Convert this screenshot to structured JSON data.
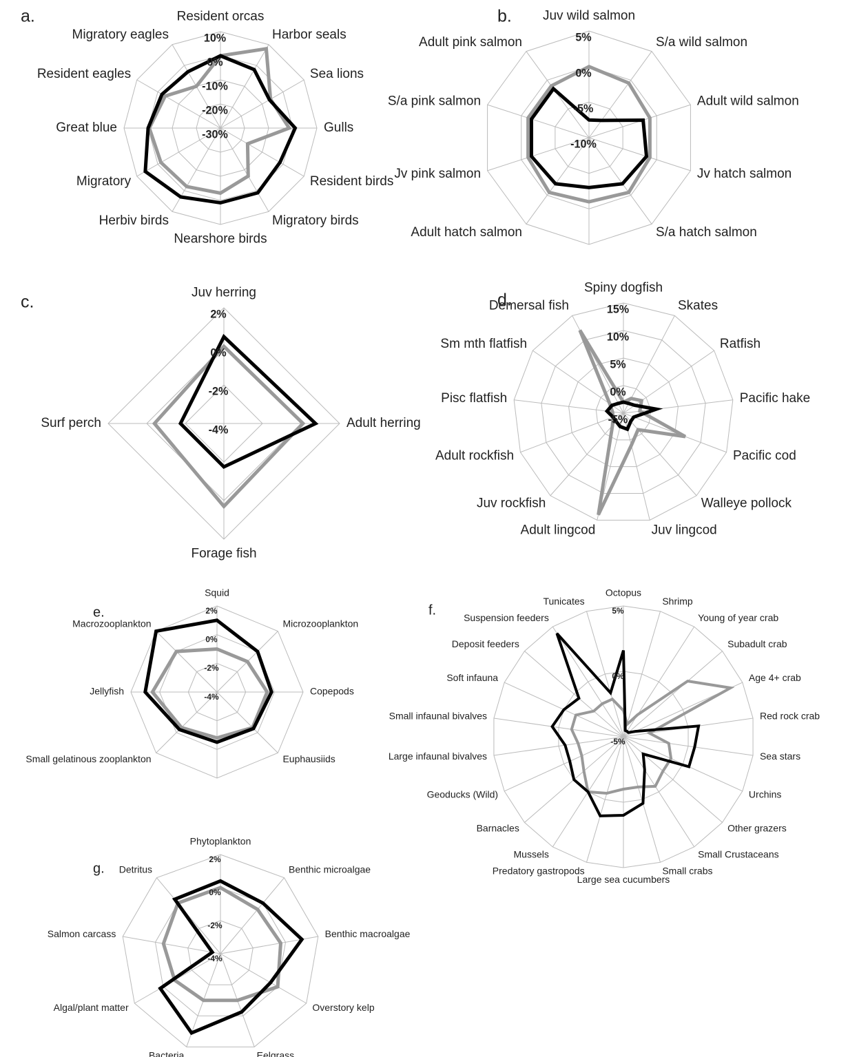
{
  "chart_data": [
    {
      "type": "radar",
      "label": "a.",
      "categories": [
        "Resident orcas",
        "Harbor seals",
        "Sea lions",
        "Gulls",
        "Resident birds",
        "Migratory birds",
        "Nearshore birds",
        "Herbiv birds",
        "Migratory",
        "Great blue",
        "Resident eagles",
        "Migratory eagles"
      ],
      "series": [
        {
          "color": "#999999",
          "values": [
            0,
            8,
            -6,
            -1.5,
            -17,
            -7,
            -3,
            -2,
            -1.5,
            -0.5,
            -3.5,
            -10
          ]
        },
        {
          "color": "#000000",
          "values": [
            0,
            -2,
            -6.5,
            1,
            -1.5,
            1,
            1,
            3,
            6,
            0,
            -2,
            -3
          ]
        }
      ],
      "rlim": [
        -30,
        10
      ],
      "rticks": [
        {
          "value": -30,
          "label": "-30%"
        },
        {
          "value": -20,
          "label": "-20%"
        },
        {
          "value": -10,
          "label": "-10%"
        },
        {
          "value": 0,
          "label": "0%"
        },
        {
          "value": 10,
          "label": "10%"
        }
      ]
    },
    {
      "type": "radar",
      "label": "b.",
      "categories": [
        "Juv wild salmon",
        "S/a wild salmon",
        "Adult wild salmon",
        "Jv hatch salmon",
        "S/a hatch salmon",
        null,
        "Adult hatch salmon",
        "Jv pink salmon",
        "S/a pink salmon",
        "Adult pink salmon"
      ],
      "series": [
        {
          "color": "#999999",
          "values": [
            0,
            -0.5,
            -1,
            -1,
            -0.5,
            -1,
            -0.5,
            -1,
            -1,
            -1
          ]
        },
        {
          "color": "#000000",
          "values": [
            -7.5,
            -7,
            -2,
            -1.5,
            -2,
            -3,
            -2,
            -1.5,
            -1.5,
            -1.5
          ]
        }
      ],
      "rlim": [
        -10,
        5
      ],
      "rticks": [
        {
          "value": -10,
          "label": "-10%"
        },
        {
          "value": -5,
          "label": "-5%"
        },
        {
          "value": 0,
          "label": "0%"
        },
        {
          "value": 5,
          "label": "5%"
        }
      ]
    },
    {
      "type": "radar",
      "label": "c.",
      "categories": [
        "Juv herring",
        "Adult herring",
        "Forage fish",
        "Surf perch"
      ],
      "series": [
        {
          "color": "#999999",
          "values": [
            0,
            0.1,
            0.3,
            -0.4
          ]
        },
        {
          "color": "#000000",
          "values": [
            0.5,
            0.75,
            -1.75,
            -1.75
          ]
        }
      ],
      "rlim": [
        -4,
        2
      ],
      "rticks": [
        {
          "value": -4,
          "label": "-4%"
        },
        {
          "value": -2,
          "label": "-2%"
        },
        {
          "value": 0,
          "label": "0%"
        },
        {
          "value": 2,
          "label": "2%"
        }
      ]
    },
    {
      "type": "radar",
      "label": "d.",
      "categories": [
        "Spiny dogfish",
        "Skates",
        "Ratfish",
        "Pacific hake",
        "Pacific cod",
        "Walleye pollock",
        "Juv lingcod",
        "Adult lingcod",
        "Juv rockfish",
        "Adult rockfish",
        "Pisc flatfish",
        "Sm mth flatfish",
        "Demersal fish"
      ],
      "series": [
        {
          "color": "#999999",
          "values": [
            -3,
            -2,
            -1,
            -2,
            7,
            -1,
            1,
            14,
            -2,
            -3,
            -3,
            -2,
            12
          ]
        },
        {
          "color": "#000000",
          "values": [
            -3,
            -3,
            -2.5,
            1,
            -3,
            -3,
            -2,
            -2.5,
            -3,
            -3,
            -2,
            -2.5,
            -3
          ]
        }
      ],
      "rlim": [
        -5,
        15
      ],
      "rticks": [
        {
          "value": -5,
          "label": "-5%"
        },
        {
          "value": 0,
          "label": "0%"
        },
        {
          "value": 5,
          "label": "5%"
        },
        {
          "value": 10,
          "label": "10%"
        },
        {
          "value": 15,
          "label": "15%"
        }
      ]
    },
    {
      "type": "radar",
      "label": "e.",
      "categories": [
        "Squid",
        "Microzooplankton",
        "Copepods",
        "Euphausiids",
        null,
        "Small gelatinous zooplankton",
        "Jellyfish",
        "Macrozooplankton"
      ],
      "series": [
        {
          "color": "#999999",
          "values": [
            -1,
            -1,
            -0.5,
            -0.5,
            -0.8,
            -0.5,
            0.5,
            0
          ]
        },
        {
          "color": "#000000",
          "values": [
            1,
            0,
            -0.2,
            -0.4,
            -0.5,
            -0.3,
            1,
            2
          ]
        }
      ],
      "rlim": [
        -4,
        2
      ],
      "rticks": [
        {
          "value": -4,
          "label": "-4%"
        },
        {
          "value": -2,
          "label": "-2%"
        },
        {
          "value": 0,
          "label": "0%"
        },
        {
          "value": 2,
          "label": "2%"
        }
      ]
    },
    {
      "type": "radar",
      "label": "f.",
      "categories": [
        "Octopus",
        "Shrimp",
        "Young of year crab",
        "Subadult crab",
        "Age 4+ crab",
        "Red rock crab",
        "Sea stars",
        "Urchins",
        "Other grazers",
        "Small Crustaceans",
        "Small crabs",
        "Large sea cucumbers",
        "Predatory gastropods",
        "Mussels",
        "Barnacles",
        "Geoducks (Wild)",
        "Large infaunal bivalves",
        "Small infaunal bivalves",
        "Soft infauna",
        "Deposit feeders",
        "Suspension feeders",
        "Tunicates"
      ],
      "series": [
        {
          "color": "#999999",
          "values": [
            -3,
            -4,
            -3,
            1.5,
            4,
            -3,
            -1.5,
            -1,
            -1,
            -0.5,
            -1,
            -1,
            -0.5,
            0,
            -1,
            -1.5,
            -1.5,
            -1,
            -1,
            -2,
            -2,
            -2
          ]
        },
        {
          "color": "#000000",
          "values": [
            1.6,
            -4.5,
            -4.5,
            -4.5,
            -4,
            0.8,
            0.5,
            0.5,
            -3,
            -2,
            0.3,
            1,
            1.3,
            0,
            0,
            -0.5,
            -0.5,
            0.5,
            0,
            -0.5,
            4.4,
            -1.5
          ]
        }
      ],
      "rlim": [
        -5,
        5
      ],
      "rticks": [
        {
          "value": -5,
          "label": "-5%"
        },
        {
          "value": 0,
          "label": "0%"
        },
        {
          "value": 5,
          "label": "5%"
        }
      ]
    },
    {
      "type": "radar",
      "label": "g.",
      "categories": [
        "Phytoplankton",
        "Benthic microalgae",
        "Benthic macroalgae",
        "Overstory kelp",
        "Eelgrass",
        "Bacteria",
        "Algal/plant  matter",
        "Salmon carcass",
        "Detritus"
      ],
      "series": [
        {
          "color": "#999999",
          "values": [
            0,
            -0.5,
            -0.3,
            0,
            -1,
            -1,
            -0.8,
            -0.5,
            0
          ]
        },
        {
          "color": "#000000",
          "values": [
            0.4,
            0,
            1,
            -0.5,
            -0.25,
            1.1,
            0.2,
            -3.5,
            0.3
          ]
        }
      ],
      "rlim": [
        -4,
        2
      ],
      "rticks": [
        {
          "value": -4,
          "label": "-4%"
        },
        {
          "value": -2,
          "label": "-2%"
        },
        {
          "value": 0,
          "label": "0%"
        },
        {
          "value": 2,
          "label": "2%"
        }
      ]
    }
  ]
}
